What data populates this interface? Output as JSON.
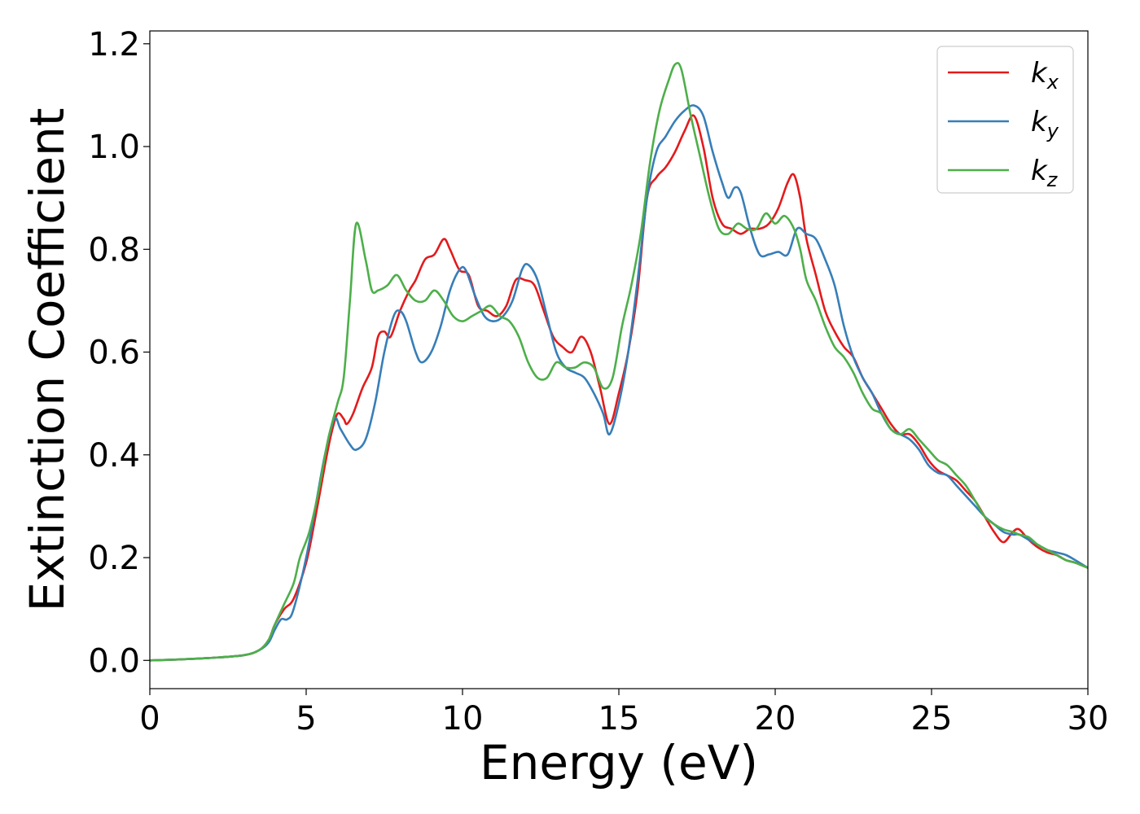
{
  "chart_data": {
    "type": "line",
    "xlabel": "Energy (eV)",
    "ylabel": "Extinction Coefficient",
    "xlim": [
      0,
      30
    ],
    "ylim": [
      -0.055,
      1.225
    ],
    "xticks": [
      0,
      5,
      10,
      15,
      20,
      25,
      30
    ],
    "xtick_labels": [
      "0",
      "5",
      "10",
      "15",
      "20",
      "25",
      "30"
    ],
    "yticks": [
      0.0,
      0.2,
      0.4,
      0.6,
      0.8,
      1.0,
      1.2
    ],
    "ytick_labels": [
      "0.0",
      "0.2",
      "0.4",
      "0.6",
      "0.8",
      "1.0",
      "1.2"
    ],
    "grid": false,
    "legend_position": "top-right",
    "series": [
      {
        "name": "k_x",
        "label_main": "k",
        "label_sub": "x",
        "color": "#e41a1c",
        "x": [
          0,
          1,
          2,
          3,
          3.5,
          3.8,
          4.0,
          4.3,
          4.6,
          5.0,
          5.3,
          5.6,
          5.8,
          6.0,
          6.2,
          6.3,
          6.5,
          6.8,
          7.1,
          7.3,
          7.5,
          7.7,
          8.0,
          8.3,
          8.5,
          8.8,
          9.1,
          9.4,
          9.6,
          9.9,
          10.2,
          10.5,
          10.8,
          11.1,
          11.4,
          11.7,
          12.0,
          12.3,
          12.6,
          12.9,
          13.2,
          13.5,
          13.8,
          14.1,
          14.4,
          14.7,
          15.0,
          15.3,
          15.6,
          15.9,
          16.2,
          16.5,
          16.8,
          17.1,
          17.4,
          17.7,
          18.0,
          18.3,
          18.6,
          18.9,
          19.2,
          19.5,
          19.8,
          20.1,
          20.4,
          20.6,
          20.8,
          21.0,
          21.3,
          21.6,
          21.9,
          22.2,
          22.5,
          22.8,
          23.1,
          23.4,
          23.7,
          24.0,
          24.3,
          24.6,
          24.9,
          25.2,
          25.5,
          25.8,
          26.1,
          26.4,
          26.7,
          27.0,
          27.3,
          27.6,
          27.8,
          28.1,
          28.4,
          28.7,
          29.0,
          29.3,
          29.6,
          30.0
        ],
        "y": [
          0.0,
          0.002,
          0.005,
          0.01,
          0.02,
          0.04,
          0.07,
          0.1,
          0.12,
          0.19,
          0.28,
          0.38,
          0.44,
          0.48,
          0.47,
          0.46,
          0.48,
          0.53,
          0.57,
          0.63,
          0.64,
          0.63,
          0.68,
          0.72,
          0.74,
          0.78,
          0.79,
          0.82,
          0.8,
          0.76,
          0.75,
          0.69,
          0.68,
          0.67,
          0.69,
          0.74,
          0.74,
          0.73,
          0.68,
          0.63,
          0.61,
          0.6,
          0.63,
          0.6,
          0.53,
          0.46,
          0.52,
          0.6,
          0.72,
          0.9,
          0.94,
          0.96,
          0.99,
          1.03,
          1.06,
          1.0,
          0.9,
          0.85,
          0.84,
          0.83,
          0.84,
          0.84,
          0.85,
          0.88,
          0.93,
          0.945,
          0.9,
          0.82,
          0.75,
          0.68,
          0.64,
          0.61,
          0.59,
          0.55,
          0.52,
          0.49,
          0.46,
          0.44,
          0.44,
          0.42,
          0.39,
          0.37,
          0.36,
          0.35,
          0.33,
          0.31,
          0.28,
          0.25,
          0.23,
          0.25,
          0.255,
          0.235,
          0.22,
          0.21,
          0.205,
          0.195,
          0.19,
          0.18
        ]
      },
      {
        "name": "k_y",
        "label_main": "k",
        "label_sub": "y",
        "color": "#377eb8",
        "x": [
          0,
          1,
          2,
          3,
          3.5,
          3.8,
          4.0,
          4.2,
          4.4,
          4.6,
          5.0,
          5.3,
          5.6,
          5.9,
          6.1,
          6.4,
          6.6,
          6.9,
          7.2,
          7.5,
          7.8,
          8.0,
          8.2,
          8.5,
          8.7,
          9.0,
          9.3,
          9.6,
          9.9,
          10.1,
          10.4,
          10.7,
          11.0,
          11.3,
          11.6,
          11.9,
          12.1,
          12.4,
          12.7,
          13.0,
          13.3,
          13.6,
          13.9,
          14.2,
          14.5,
          14.7,
          15.0,
          15.3,
          15.6,
          15.9,
          16.2,
          16.5,
          16.8,
          17.1,
          17.4,
          17.7,
          18.0,
          18.3,
          18.5,
          18.7,
          18.9,
          19.2,
          19.5,
          19.8,
          20.1,
          20.4,
          20.7,
          21.0,
          21.3,
          21.6,
          21.9,
          22.2,
          22.5,
          22.8,
          23.1,
          23.4,
          23.7,
          24.0,
          24.3,
          24.6,
          24.9,
          25.2,
          25.5,
          25.8,
          26.1,
          26.4,
          26.7,
          27.0,
          27.3,
          27.6,
          27.8,
          28.1,
          28.4,
          28.7,
          29.0,
          29.3,
          29.6,
          30.0
        ],
        "y": [
          0.0,
          0.002,
          0.005,
          0.01,
          0.02,
          0.035,
          0.06,
          0.08,
          0.08,
          0.1,
          0.2,
          0.3,
          0.4,
          0.47,
          0.45,
          0.42,
          0.41,
          0.43,
          0.5,
          0.6,
          0.67,
          0.68,
          0.66,
          0.6,
          0.58,
          0.6,
          0.65,
          0.72,
          0.76,
          0.76,
          0.71,
          0.67,
          0.66,
          0.67,
          0.7,
          0.76,
          0.77,
          0.74,
          0.67,
          0.6,
          0.57,
          0.56,
          0.55,
          0.52,
          0.48,
          0.44,
          0.5,
          0.6,
          0.74,
          0.9,
          0.99,
          1.02,
          1.05,
          1.07,
          1.08,
          1.06,
          0.99,
          0.93,
          0.9,
          0.92,
          0.91,
          0.84,
          0.79,
          0.79,
          0.795,
          0.79,
          0.84,
          0.83,
          0.82,
          0.78,
          0.73,
          0.65,
          0.59,
          0.55,
          0.52,
          0.48,
          0.45,
          0.44,
          0.43,
          0.41,
          0.38,
          0.365,
          0.36,
          0.34,
          0.32,
          0.3,
          0.28,
          0.265,
          0.25,
          0.245,
          0.245,
          0.235,
          0.225,
          0.215,
          0.21,
          0.205,
          0.195,
          0.18
        ]
      },
      {
        "name": "k_z",
        "label_main": "k",
        "label_sub": "z",
        "color": "#4daf4a",
        "x": [
          0,
          1,
          2,
          3,
          3.5,
          3.8,
          4.0,
          4.3,
          4.6,
          4.8,
          5.1,
          5.4,
          5.7,
          6.0,
          6.2,
          6.4,
          6.6,
          6.9,
          7.1,
          7.3,
          7.6,
          7.9,
          8.2,
          8.5,
          8.8,
          9.1,
          9.4,
          9.7,
          10.0,
          10.3,
          10.6,
          10.9,
          11.2,
          11.5,
          11.8,
          12.1,
          12.4,
          12.7,
          13.0,
          13.3,
          13.6,
          13.9,
          14.2,
          14.5,
          14.8,
          15.1,
          15.4,
          15.7,
          16.0,
          16.3,
          16.6,
          16.8,
          17.0,
          17.3,
          17.6,
          17.9,
          18.2,
          18.5,
          18.8,
          19.1,
          19.4,
          19.7,
          20.0,
          20.3,
          20.6,
          20.8,
          21.0,
          21.3,
          21.6,
          21.9,
          22.2,
          22.5,
          22.8,
          23.1,
          23.4,
          23.7,
          24.0,
          24.3,
          24.6,
          24.9,
          25.2,
          25.5,
          25.8,
          26.1,
          26.4,
          26.7,
          27.0,
          27.3,
          27.6,
          27.8,
          28.1,
          28.4,
          28.7,
          29.0,
          29.3,
          29.6,
          30.0
        ],
        "y": [
          0.0,
          0.002,
          0.005,
          0.01,
          0.02,
          0.04,
          0.07,
          0.11,
          0.15,
          0.2,
          0.25,
          0.33,
          0.43,
          0.5,
          0.55,
          0.7,
          0.85,
          0.78,
          0.72,
          0.72,
          0.73,
          0.75,
          0.72,
          0.7,
          0.7,
          0.72,
          0.7,
          0.67,
          0.66,
          0.67,
          0.68,
          0.69,
          0.67,
          0.66,
          0.63,
          0.58,
          0.55,
          0.55,
          0.58,
          0.57,
          0.57,
          0.58,
          0.57,
          0.53,
          0.55,
          0.65,
          0.73,
          0.83,
          0.97,
          1.07,
          1.13,
          1.16,
          1.15,
          1.06,
          0.98,
          0.9,
          0.84,
          0.83,
          0.85,
          0.84,
          0.84,
          0.87,
          0.85,
          0.865,
          0.84,
          0.8,
          0.74,
          0.7,
          0.65,
          0.61,
          0.59,
          0.56,
          0.52,
          0.49,
          0.48,
          0.45,
          0.44,
          0.45,
          0.43,
          0.41,
          0.39,
          0.38,
          0.36,
          0.34,
          0.31,
          0.28,
          0.265,
          0.255,
          0.25,
          0.245,
          0.24,
          0.225,
          0.215,
          0.205,
          0.195,
          0.19,
          0.18
        ]
      }
    ]
  }
}
